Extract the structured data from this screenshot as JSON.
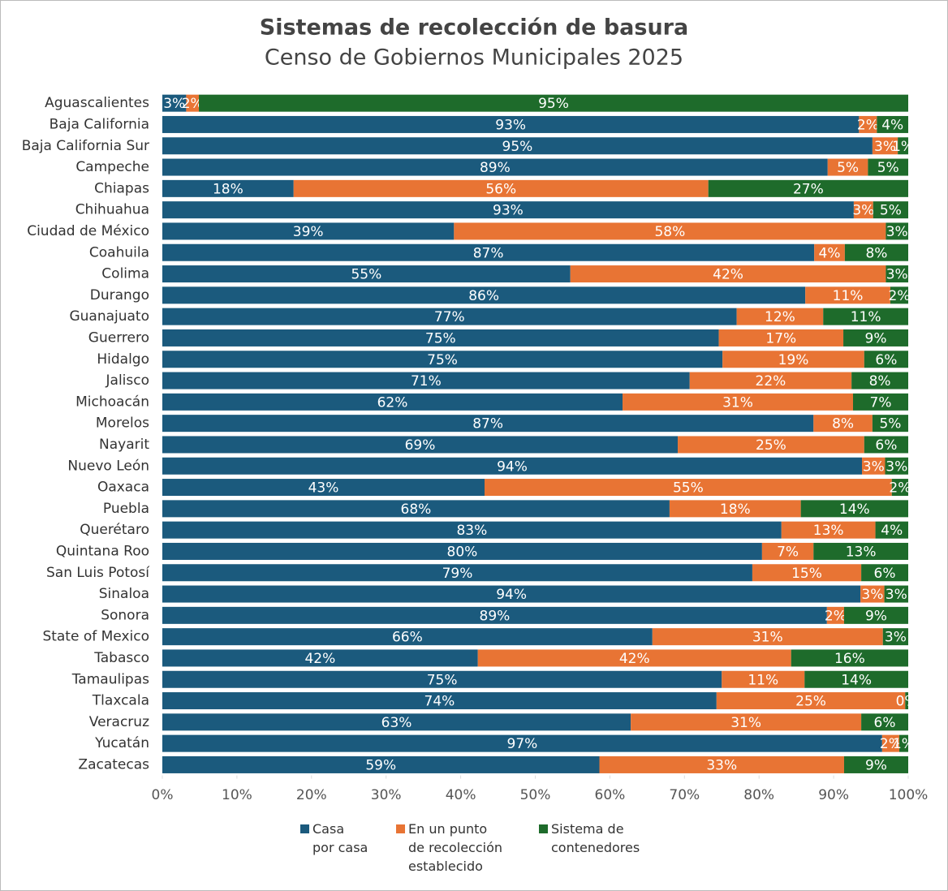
{
  "chart_data": {
    "type": "stacked-bar-horizontal",
    "title": "Sistemas de recolección de basura",
    "subtitle": "Censo de Gobiernos Municipales 2025",
    "categories": [
      "Aguascalientes",
      "Baja California",
      "Baja California Sur",
      "Campeche",
      "Chiapas",
      "Chihuahua",
      "Ciudad de México",
      "Coahuila",
      "Colima",
      "Durango",
      "Guanajuato",
      "Guerrero",
      "Hidalgo",
      "Jalisco",
      "Michoacán",
      "Morelos",
      "Nayarit",
      "Nuevo León",
      "Oaxaca",
      "Puebla",
      "Querétaro",
      "Quintana Roo",
      "San Luis Potosí",
      "Sinaloa",
      "Sonora",
      "State of Mexico",
      "Tabasco",
      "Tamaulipas",
      "Tlaxcala",
      "Veracruz",
      "Yucatán",
      "Zacatecas"
    ],
    "series": [
      {
        "name": "Casa\npor casa",
        "color": "#1b5a7d",
        "values": [
          3.2,
          93.4,
          95.2,
          89.2,
          17.6,
          92.7,
          39.1,
          87.4,
          54.7,
          86.2,
          77.0,
          74.6,
          75.1,
          70.7,
          61.7,
          87.3,
          69.1,
          93.8,
          43.2,
          68.0,
          83.0,
          80.4,
          79.1,
          93.6,
          89.1,
          65.7,
          42.3,
          75.0,
          74.3,
          62.8,
          96.5,
          58.6
        ],
        "value_labels": [
          "3%",
          "93%",
          "95%",
          "89%",
          "18%",
          "93%",
          "39%",
          "87%",
          "55%",
          "86%",
          "77%",
          "75%",
          "75%",
          "71%",
          "62%",
          "87%",
          "69%",
          "94%",
          "43%",
          "68%",
          "83%",
          "80%",
          "79%",
          "94%",
          "89%",
          "66%",
          "42%",
          "75%",
          "74%",
          "63%",
          "97%",
          "59%"
        ]
      },
      {
        "name": "En un punto\nde recolección\nestablecido",
        "color": "#e87434",
        "values": [
          1.7,
          2.4,
          3.4,
          5.4,
          55.6,
          2.6,
          57.9,
          4.1,
          42.3,
          11.4,
          11.6,
          16.7,
          19.0,
          21.7,
          30.9,
          7.9,
          25.0,
          3.1,
          54.6,
          17.6,
          12.6,
          6.9,
          14.6,
          3.2,
          2.3,
          30.9,
          42.0,
          11.1,
          25.3,
          30.9,
          2.3,
          32.8
        ],
        "value_labels": [
          "2%",
          "2%",
          "3%",
          "5%",
          "56%",
          "3%",
          "58%",
          "4%",
          "42%",
          "11%",
          "12%",
          "17%",
          "19%",
          "22%",
          "31%",
          "8%",
          "25%",
          "3%",
          "55%",
          "18%",
          "13%",
          "7%",
          "15%",
          "3%",
          "2%",
          "31%",
          "42%",
          "11%",
          "25%",
          "31%",
          "2%",
          "33%"
        ]
      },
      {
        "name": "Sistema de\ncontenedores",
        "color": "#1e6b2b",
        "values": [
          95.1,
          4.2,
          1.4,
          5.4,
          26.8,
          4.7,
          3.0,
          8.5,
          3.0,
          2.4,
          11.4,
          8.7,
          5.9,
          7.6,
          7.4,
          4.8,
          5.9,
          3.1,
          2.2,
          14.4,
          4.4,
          12.7,
          6.3,
          3.2,
          8.6,
          3.4,
          15.7,
          13.9,
          0.4,
          6.3,
          1.2,
          8.6
        ],
        "value_labels": [
          "95%",
          "4%",
          "1%",
          "5%",
          "27%",
          "5%",
          "3%",
          "8%",
          "3%",
          "2%",
          "11%",
          "9%",
          "6%",
          "8%",
          "7%",
          "5%",
          "6%",
          "3%",
          "2%",
          "14%",
          "4%",
          "13%",
          "6%",
          "3%",
          "9%",
          "3%",
          "16%",
          "14%",
          "0%",
          "6%",
          "1%",
          "9%"
        ]
      }
    ],
    "xlim": [
      0,
      100
    ],
    "xticks": [
      {
        "value": 0,
        "label": "0%"
      },
      {
        "value": 10,
        "label": "10%"
      },
      {
        "value": 20,
        "label": "20%"
      },
      {
        "value": 30,
        "label": "30%"
      },
      {
        "value": 40,
        "label": "40%"
      },
      {
        "value": 50,
        "label": "50%"
      },
      {
        "value": 60,
        "label": "60%"
      },
      {
        "value": 70,
        "label": "70%"
      },
      {
        "value": 80,
        "label": "80%"
      },
      {
        "value": 90,
        "label": "90%"
      },
      {
        "value": 100,
        "label": "100%"
      }
    ]
  }
}
